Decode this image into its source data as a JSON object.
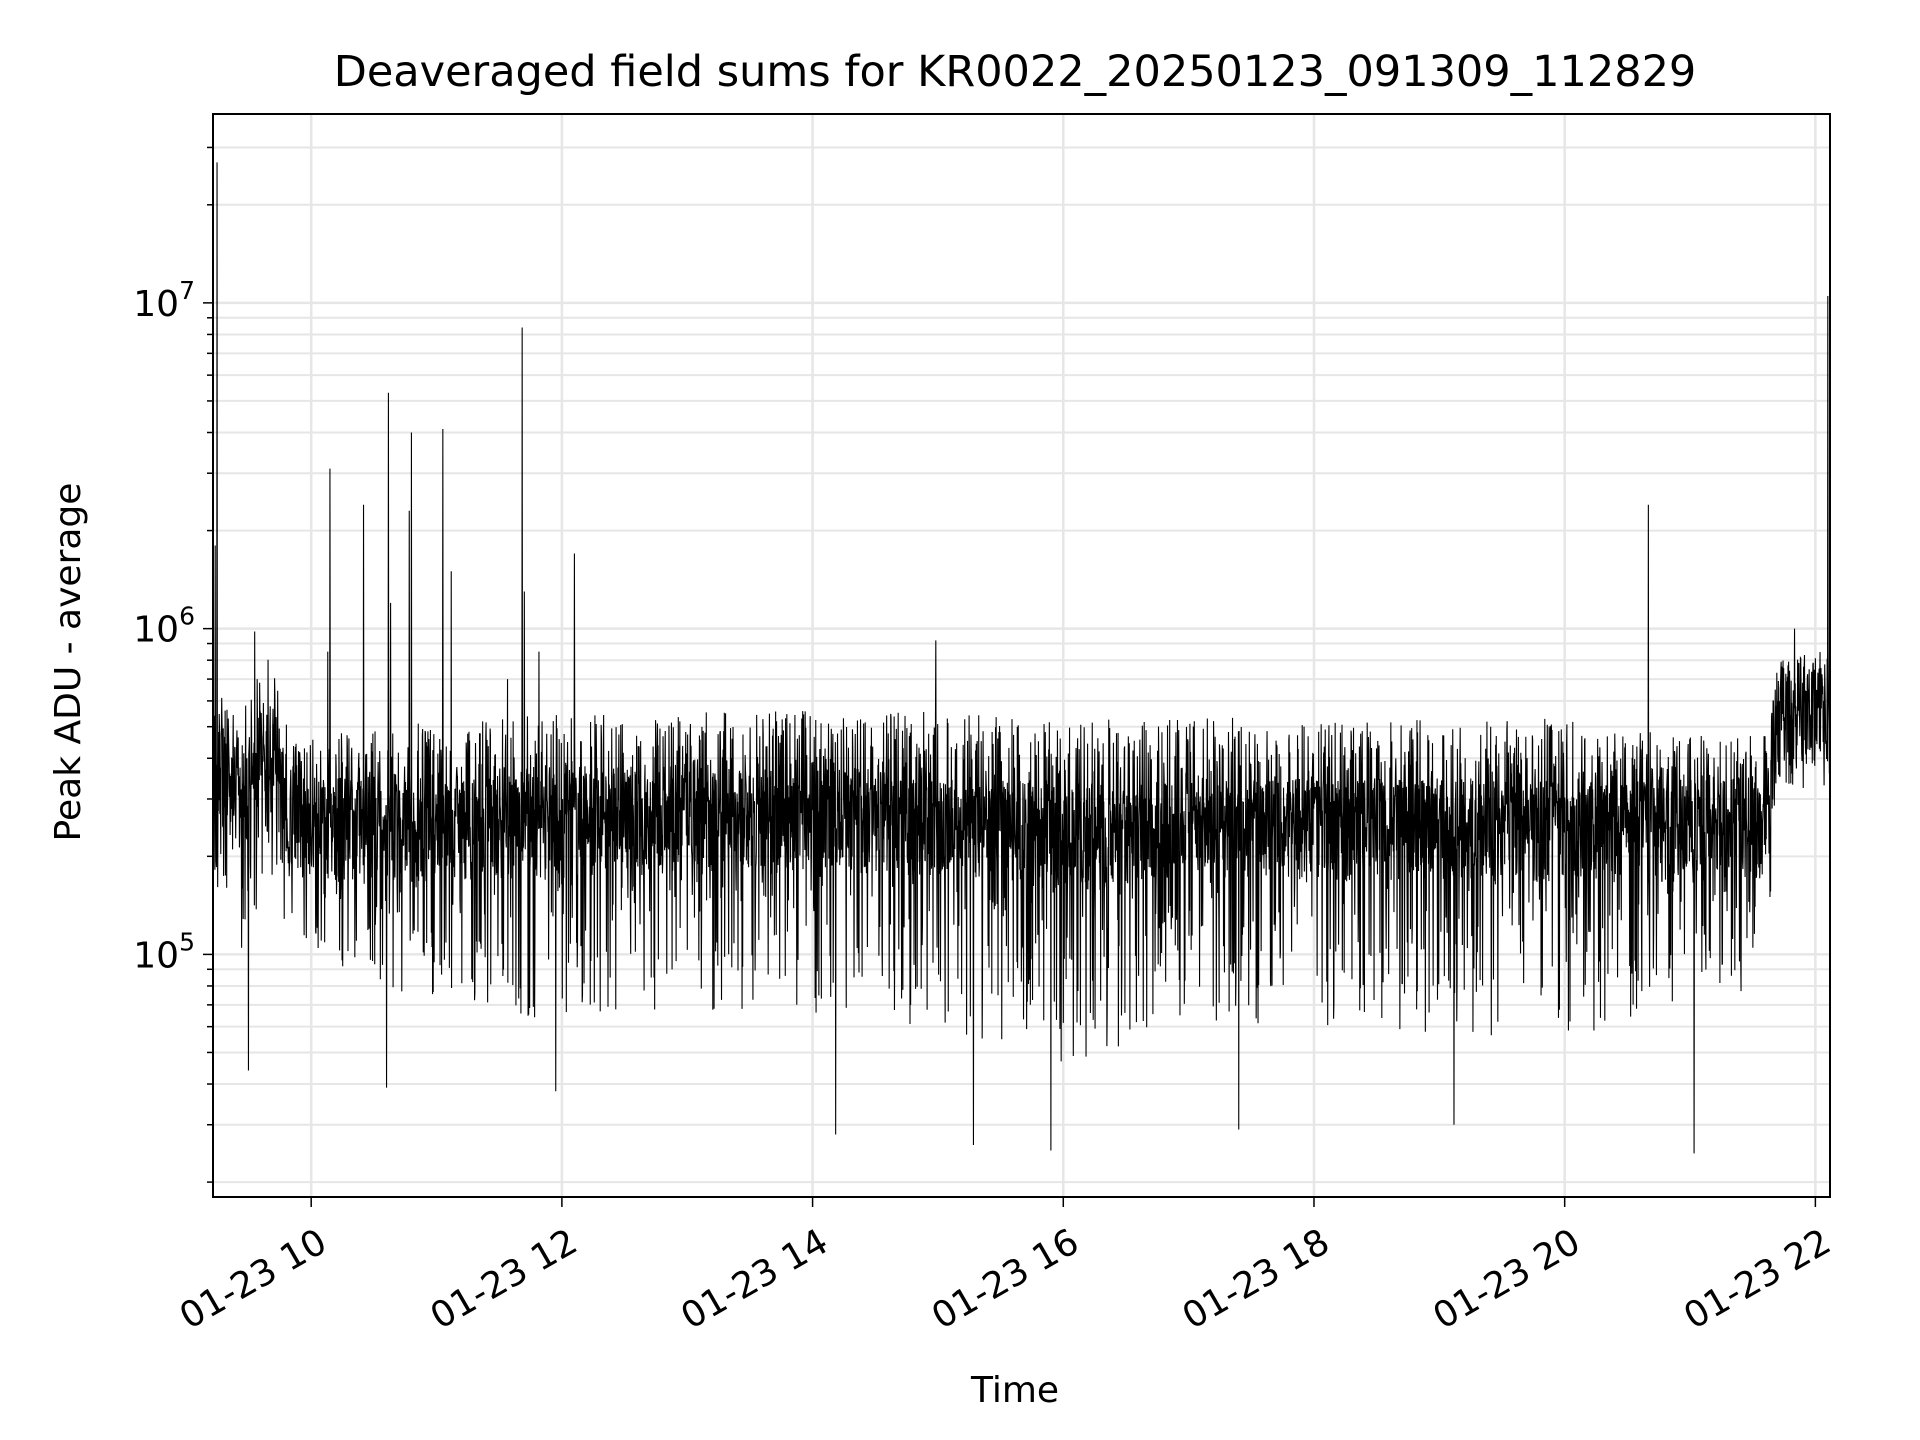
{
  "chart_data": {
    "type": "line",
    "title": "Deaveraged field sums for KR0022_20250123_091309_112829",
    "xlabel": "Time",
    "ylabel": "Peak ADU - average",
    "xscale": "time",
    "yscale": "log",
    "grid": true,
    "grid_minor": true,
    "legend": "none",
    "line_color": "#000000",
    "grid_color": "#e6e6e6",
    "xlim": [
      "2025-01-23 09:13",
      "2025-01-23 22:07"
    ],
    "ylim": [
      18000,
      38000000
    ],
    "x_ticks": [
      {
        "t": "2025-01-23 10:00",
        "label": "01-23 10"
      },
      {
        "t": "2025-01-23 12:00",
        "label": "01-23 12"
      },
      {
        "t": "2025-01-23 14:00",
        "label": "01-23 14"
      },
      {
        "t": "2025-01-23 16:00",
        "label": "01-23 16"
      },
      {
        "t": "2025-01-23 18:00",
        "label": "01-23 18"
      },
      {
        "t": "2025-01-23 20:00",
        "label": "01-23 20"
      },
      {
        "t": "2025-01-23 22:00",
        "label": "01-23 22"
      }
    ],
    "y_ticks": [
      {
        "value": 100000,
        "base": "10",
        "exp": "5"
      },
      {
        "value": 1000000,
        "base": "10",
        "exp": "6"
      },
      {
        "value": 10000000,
        "base": "10",
        "exp": "7"
      }
    ],
    "series": [
      {
        "baseline": [
          {
            "t": "2025-01-23 09:13",
            "median": 400000,
            "low": 160000,
            "high": 650000
          },
          {
            "t": "2025-01-23 09:25",
            "median": 290000,
            "low": 90000,
            "high": 550000
          },
          {
            "t": "2025-01-23 09:40",
            "median": 450000,
            "low": 180000,
            "high": 900000
          },
          {
            "t": "2025-01-23 09:50",
            "median": 240000,
            "low": 110000,
            "high": 450000
          },
          {
            "t": "2025-01-23 10:30",
            "median": 240000,
            "low": 80000,
            "high": 500000
          },
          {
            "t": "2025-01-23 12:00",
            "median": 250000,
            "low": 60000,
            "high": 550000
          },
          {
            "t": "2025-01-23 14:00",
            "median": 260000,
            "low": 65000,
            "high": 560000
          },
          {
            "t": "2025-01-23 15:00",
            "median": 250000,
            "low": 60000,
            "high": 560000
          },
          {
            "t": "2025-01-23 16:00",
            "median": 220000,
            "low": 45000,
            "high": 520000
          },
          {
            "t": "2025-01-23 17:00",
            "median": 250000,
            "low": 60000,
            "high": 540000
          },
          {
            "t": "2025-01-23 18:00",
            "median": 240000,
            "low": 60000,
            "high": 520000
          },
          {
            "t": "2025-01-23 20:00",
            "median": 240000,
            "low": 55000,
            "high": 530000
          },
          {
            "t": "2025-01-23 21:37",
            "median": 240000,
            "low": 80000,
            "high": 470000
          },
          {
            "t": "2025-01-23 21:41",
            "median": 520000,
            "low": 320000,
            "high": 800000
          },
          {
            "t": "2025-01-23 22:07",
            "median": 560000,
            "low": 320000,
            "high": 880000
          }
        ],
        "spikes": [
          {
            "t": "2025-01-23 09:15",
            "value": 27000000
          },
          {
            "t": "2025-01-23 09:14",
            "value": 1800000
          },
          {
            "t": "2025-01-23 09:33",
            "value": 980000
          },
          {
            "t": "2025-01-23 10:08",
            "value": 850000
          },
          {
            "t": "2025-01-23 10:09",
            "value": 3100000
          },
          {
            "t": "2025-01-23 10:25",
            "value": 2400000
          },
          {
            "t": "2025-01-23 10:37",
            "value": 5300000
          },
          {
            "t": "2025-01-23 10:38",
            "value": 1200000
          },
          {
            "t": "2025-01-23 10:47",
            "value": 2300000
          },
          {
            "t": "2025-01-23 10:48",
            "value": 4000000
          },
          {
            "t": "2025-01-23 11:03",
            "value": 4100000
          },
          {
            "t": "2025-01-23 11:07",
            "value": 1500000
          },
          {
            "t": "2025-01-23 11:34",
            "value": 700000
          },
          {
            "t": "2025-01-23 11:41",
            "value": 8400000
          },
          {
            "t": "2025-01-23 11:42",
            "value": 1300000
          },
          {
            "t": "2025-01-23 11:49",
            "value": 850000
          },
          {
            "t": "2025-01-23 12:06",
            "value": 1700000
          },
          {
            "t": "2025-01-23 14:59",
            "value": 920000
          },
          {
            "t": "2025-01-23 20:40",
            "value": 2400000
          },
          {
            "t": "2025-01-23 21:50",
            "value": 1000000
          },
          {
            "t": "2025-01-23 22:06",
            "value": 10500000
          }
        ],
        "dips": [
          {
            "t": "2025-01-23 09:30",
            "value": 44000
          },
          {
            "t": "2025-01-23 10:36",
            "value": 39000
          },
          {
            "t": "2025-01-23 11:57",
            "value": 38000
          },
          {
            "t": "2025-01-23 14:11",
            "value": 28000
          },
          {
            "t": "2025-01-23 15:17",
            "value": 26000
          },
          {
            "t": "2025-01-23 15:54",
            "value": 25000
          },
          {
            "t": "2025-01-23 17:24",
            "value": 29000
          },
          {
            "t": "2025-01-23 19:07",
            "value": 30000
          },
          {
            "t": "2025-01-23 21:02",
            "value": 24500
          }
        ]
      }
    ]
  }
}
